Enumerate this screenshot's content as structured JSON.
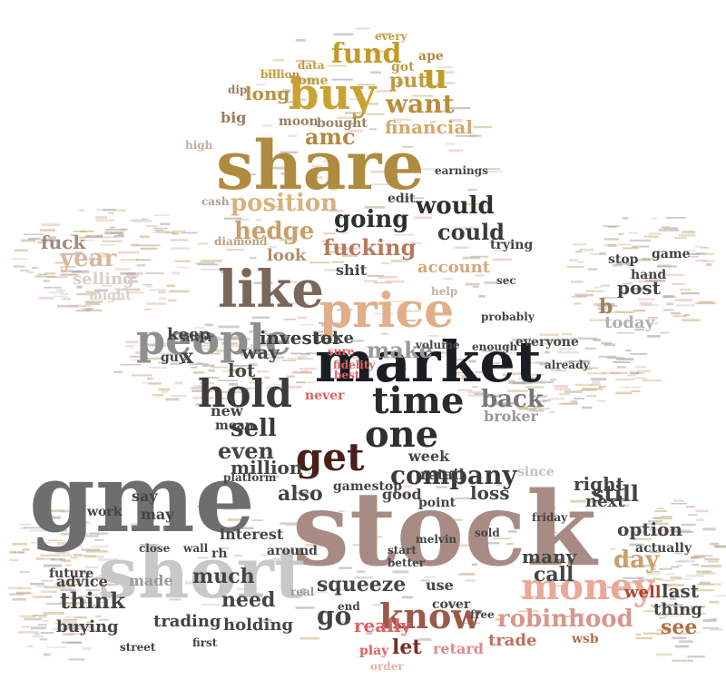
{
  "wordcloud": {
    "words": [
      {
        "text": "share",
        "color": "#b08a3e"
      },
      {
        "text": "stock",
        "color": "#a88c84"
      },
      {
        "text": "gme",
        "color": "#6e6e6e"
      },
      {
        "text": "short",
        "color": "#c8c8c8"
      },
      {
        "text": "buy",
        "color": "#c9a233"
      },
      {
        "text": "market",
        "color": "#1a1e22"
      },
      {
        "text": "price",
        "color": "#e2ae8a"
      },
      {
        "text": "like",
        "color": "#7a675a"
      },
      {
        "text": "get",
        "color": "#4a1f1a"
      },
      {
        "text": "people",
        "color": "#8e8e8e"
      },
      {
        "text": "hold",
        "color": "#3b3b3b"
      },
      {
        "text": "time",
        "color": "#2b2b2b"
      },
      {
        "text": "one",
        "color": "#2f2f2f"
      },
      {
        "text": "money",
        "color": "#e9a898"
      },
      {
        "text": "know",
        "color": "#9a5a4a"
      },
      {
        "text": "fund",
        "color": "#c29b2a"
      },
      {
        "text": "u",
        "color": "#c29b2a"
      },
      {
        "text": "want",
        "color": "#b98d3a"
      },
      {
        "text": "company",
        "color": "#3a3a3a"
      },
      {
        "text": "robinhood",
        "color": "#d9968c"
      },
      {
        "text": "position",
        "color": "#d8b27a"
      },
      {
        "text": "hedge",
        "color": "#c9a06a"
      },
      {
        "text": "going",
        "color": "#2e2e2e"
      },
      {
        "text": "would",
        "color": "#2e2e2e"
      },
      {
        "text": "fucking",
        "color": "#b87a5c"
      },
      {
        "text": "could",
        "color": "#3a3a3a"
      },
      {
        "text": "make",
        "color": "#9a9a9a"
      },
      {
        "text": "sell",
        "color": "#3a3a3a"
      },
      {
        "text": "even",
        "color": "#444444"
      },
      {
        "text": "back",
        "color": "#777777"
      },
      {
        "text": "day",
        "color": "#c9a06a"
      },
      {
        "text": "still",
        "color": "#444444"
      },
      {
        "text": "think",
        "color": "#444444"
      },
      {
        "text": "much",
        "color": "#444444"
      },
      {
        "text": "need",
        "color": "#444444"
      },
      {
        "text": "go",
        "color": "#444444"
      },
      {
        "text": "also",
        "color": "#444444"
      },
      {
        "text": "see",
        "color": "#b07040"
      },
      {
        "text": "let",
        "color": "#7a2a22"
      },
      {
        "text": "trade",
        "color": "#c07060"
      },
      {
        "text": "really",
        "color": "#e06060"
      },
      {
        "text": "amc",
        "color": "#b08a3e"
      },
      {
        "text": "financial",
        "color": "#d2a86a"
      },
      {
        "text": "long",
        "color": "#b8924a"
      },
      {
        "text": "put",
        "color": "#c09a3e"
      },
      {
        "text": "account",
        "color": "#d6a67a"
      },
      {
        "text": "investor",
        "color": "#3a3a3a"
      },
      {
        "text": "keep",
        "color": "#444444"
      },
      {
        "text": "way",
        "color": "#444444"
      },
      {
        "text": "lot",
        "color": "#444444"
      },
      {
        "text": "x",
        "color": "#444444"
      },
      {
        "text": "year",
        "color": "#d9b89a"
      },
      {
        "text": "fuck",
        "color": "#a08a7a"
      },
      {
        "text": "selling",
        "color": "#d8cfc8"
      },
      {
        "text": "post",
        "color": "#444444"
      },
      {
        "text": "b",
        "color": "#a08060"
      },
      {
        "text": "today",
        "color": "#b0b0b0"
      },
      {
        "text": "call",
        "color": "#444444"
      },
      {
        "text": "loss",
        "color": "#444444"
      },
      {
        "text": "squeeze",
        "color": "#444444"
      },
      {
        "text": "well",
        "color": "#b04030"
      },
      {
        "text": "last",
        "color": "#444444"
      },
      {
        "text": "thing",
        "color": "#444444"
      },
      {
        "text": "option",
        "color": "#444444"
      },
      {
        "text": "right",
        "color": "#444444"
      },
      {
        "text": "next",
        "color": "#444444"
      },
      {
        "text": "many",
        "color": "#444444"
      },
      {
        "text": "take",
        "color": "#444444"
      },
      {
        "text": "big",
        "color": "#9a8060"
      },
      {
        "text": "moon",
        "color": "#9a8060"
      },
      {
        "text": "bought",
        "color": "#9a8060"
      },
      {
        "text": "look",
        "color": "#b09070"
      },
      {
        "text": "shit",
        "color": "#444444"
      },
      {
        "text": "edit",
        "color": "#444444"
      },
      {
        "text": "trying",
        "color": "#444444"
      },
      {
        "text": "million",
        "color": "#444444"
      },
      {
        "text": "mean",
        "color": "#444444"
      },
      {
        "text": "new",
        "color": "#444444"
      },
      {
        "text": "broker",
        "color": "#999999"
      },
      {
        "text": "week",
        "color": "#444444"
      },
      {
        "text": "retail",
        "color": "#444444"
      },
      {
        "text": "gamestop",
        "color": "#444444"
      },
      {
        "text": "good",
        "color": "#444444"
      },
      {
        "text": "point",
        "color": "#444444"
      },
      {
        "text": "say",
        "color": "#444444"
      },
      {
        "text": "may",
        "color": "#444444"
      },
      {
        "text": "interest",
        "color": "#444444"
      },
      {
        "text": "around",
        "color": "#444444"
      },
      {
        "text": "advice",
        "color": "#444444"
      },
      {
        "text": "holding",
        "color": "#444444"
      },
      {
        "text": "trading",
        "color": "#444444"
      },
      {
        "text": "buying",
        "color": "#444444"
      },
      {
        "text": "made",
        "color": "#999999"
      },
      {
        "text": "first",
        "color": "#444444"
      },
      {
        "text": "wsb",
        "color": "#b07050"
      },
      {
        "text": "play",
        "color": "#e06060"
      },
      {
        "text": "retard",
        "color": "#e08888"
      },
      {
        "text": "order",
        "color": "#e9b0a8"
      },
      {
        "text": "everyone",
        "color": "#444444"
      },
      {
        "text": "volume",
        "color": "#444444"
      },
      {
        "text": "enough",
        "color": "#444444"
      },
      {
        "text": "never",
        "color": "#e06060"
      },
      {
        "text": "real",
        "color": "#999999"
      },
      {
        "text": "come",
        "color": "#c09a3e"
      },
      {
        "text": "got",
        "color": "#c09a3e"
      },
      {
        "text": "every",
        "color": "#c09a3e"
      },
      {
        "text": "ape",
        "color": "#b08a3e"
      },
      {
        "text": "data",
        "color": "#c09a3e"
      },
      {
        "text": "billion",
        "color": "#c09a3e"
      },
      {
        "text": "dip",
        "color": "#9a8060"
      },
      {
        "text": "high",
        "color": "#c0b0a0"
      },
      {
        "text": "cash",
        "color": "#b0a090"
      },
      {
        "text": "diamond",
        "color": "#c0a080"
      },
      {
        "text": "earnings",
        "color": "#444444"
      },
      {
        "text": "game",
        "color": "#444444"
      },
      {
        "text": "stop",
        "color": "#444444"
      },
      {
        "text": "hand",
        "color": "#444444"
      },
      {
        "text": "might",
        "color": "#d8cfc8"
      },
      {
        "text": "platform",
        "color": "#444444"
      },
      {
        "text": "silver",
        "color": "#444444"
      },
      {
        "text": "guy",
        "color": "#444444"
      },
      {
        "text": "work",
        "color": "#444444"
      },
      {
        "text": "future",
        "color": "#444444"
      },
      {
        "text": "rh",
        "color": "#444444"
      },
      {
        "text": "close",
        "color": "#444444"
      },
      {
        "text": "wall",
        "color": "#444444"
      },
      {
        "text": "street",
        "color": "#444444"
      },
      {
        "text": "sure",
        "color": "#e06060"
      },
      {
        "text": "actually",
        "color": "#444444"
      },
      {
        "text": "better",
        "color": "#444444"
      },
      {
        "text": "use",
        "color": "#444444"
      },
      {
        "text": "since",
        "color": "#c0c0c0"
      },
      {
        "text": "sold",
        "color": "#444444"
      },
      {
        "text": "start",
        "color": "#444444"
      },
      {
        "text": "friday",
        "color": "#444444"
      },
      {
        "text": "best",
        "color": "#e06060"
      },
      {
        "text": "fidelity",
        "color": "#e06060"
      },
      {
        "text": "free",
        "color": "#444444"
      },
      {
        "text": "cover",
        "color": "#444444"
      },
      {
        "text": "end",
        "color": "#444444"
      },
      {
        "text": "melvin",
        "color": "#444444"
      },
      {
        "text": "sec",
        "color": "#444444"
      },
      {
        "text": "probably",
        "color": "#444444"
      },
      {
        "text": "already",
        "color": "#444444"
      },
      {
        "text": "help",
        "color": "#c0b0a0"
      }
    ]
  }
}
